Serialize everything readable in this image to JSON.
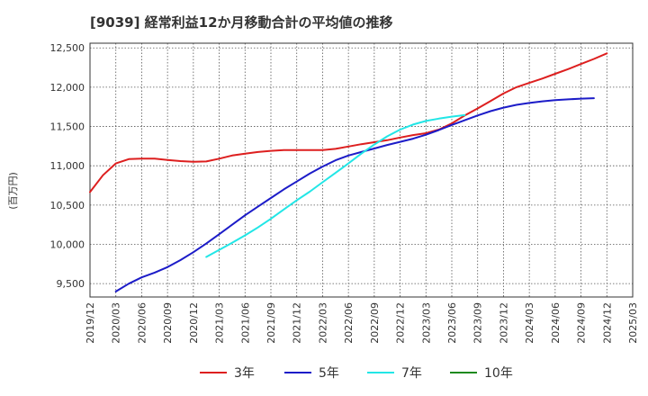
{
  "chart_data": {
    "type": "line",
    "title": "[9039]  経常利益12か月移動合計の平均値の推移",
    "ylabel": "(百万円)",
    "xlabel": "",
    "ylim": [
      9330,
      12560
    ],
    "yticks": [
      9500,
      10000,
      10500,
      11000,
      11500,
      12000,
      12500
    ],
    "ytick_labels": [
      "9,500",
      "10,000",
      "10,500",
      "11,000",
      "11,500",
      "12,000",
      "12,500"
    ],
    "xtick_labels": [
      "2019/12",
      "2020/03",
      "2020/06",
      "2020/09",
      "2020/12",
      "2021/03",
      "2021/06",
      "2021/09",
      "2021/12",
      "2022/03",
      "2022/06",
      "2022/09",
      "2022/12",
      "2023/03",
      "2023/06",
      "2023/09",
      "2023/12",
      "2024/03",
      "2024/06",
      "2024/09",
      "2024/12",
      "2025/03"
    ],
    "grid": true,
    "legend_position": "bottom",
    "series": [
      {
        "name": "3年",
        "color": "#dd1f1f",
        "start_index": 0,
        "values": [
          10665,
          10880,
          11030,
          11085,
          11090,
          11090,
          11075,
          11060,
          11050,
          11055,
          11090,
          11130,
          11155,
          11175,
          11190,
          11200,
          11200,
          11200,
          11200,
          11215,
          11245,
          11275,
          11300,
          11325,
          11360,
          11390,
          11415,
          11460,
          11540,
          11640,
          11730,
          11825,
          11920,
          12000,
          12055,
          12110,
          12170,
          12230,
          12295,
          12360,
          12430
        ]
      },
      {
        "name": "5年",
        "color": "#1c1cc8",
        "start_index": 2,
        "values": [
          9400,
          9500,
          9580,
          9640,
          9710,
          9800,
          9900,
          10010,
          10130,
          10250,
          10370,
          10480,
          10590,
          10700,
          10800,
          10900,
          10990,
          11070,
          11130,
          11175,
          11220,
          11265,
          11305,
          11345,
          11395,
          11455,
          11520,
          11580,
          11640,
          11695,
          11740,
          11775,
          11800,
          11820,
          11835,
          11845,
          11855,
          11860
        ]
      },
      {
        "name": "7年",
        "color": "#22e6e6",
        "start_index": 9,
        "values": [
          9840,
          9930,
          10020,
          10115,
          10215,
          10325,
          10445,
          10560,
          10670,
          10790,
          10910,
          11030,
          11155,
          11270,
          11375,
          11460,
          11525,
          11570,
          11600,
          11625,
          11645
        ]
      },
      {
        "name": "10年",
        "color": "#1e8a1e",
        "start_index": 0,
        "values": []
      }
    ]
  }
}
